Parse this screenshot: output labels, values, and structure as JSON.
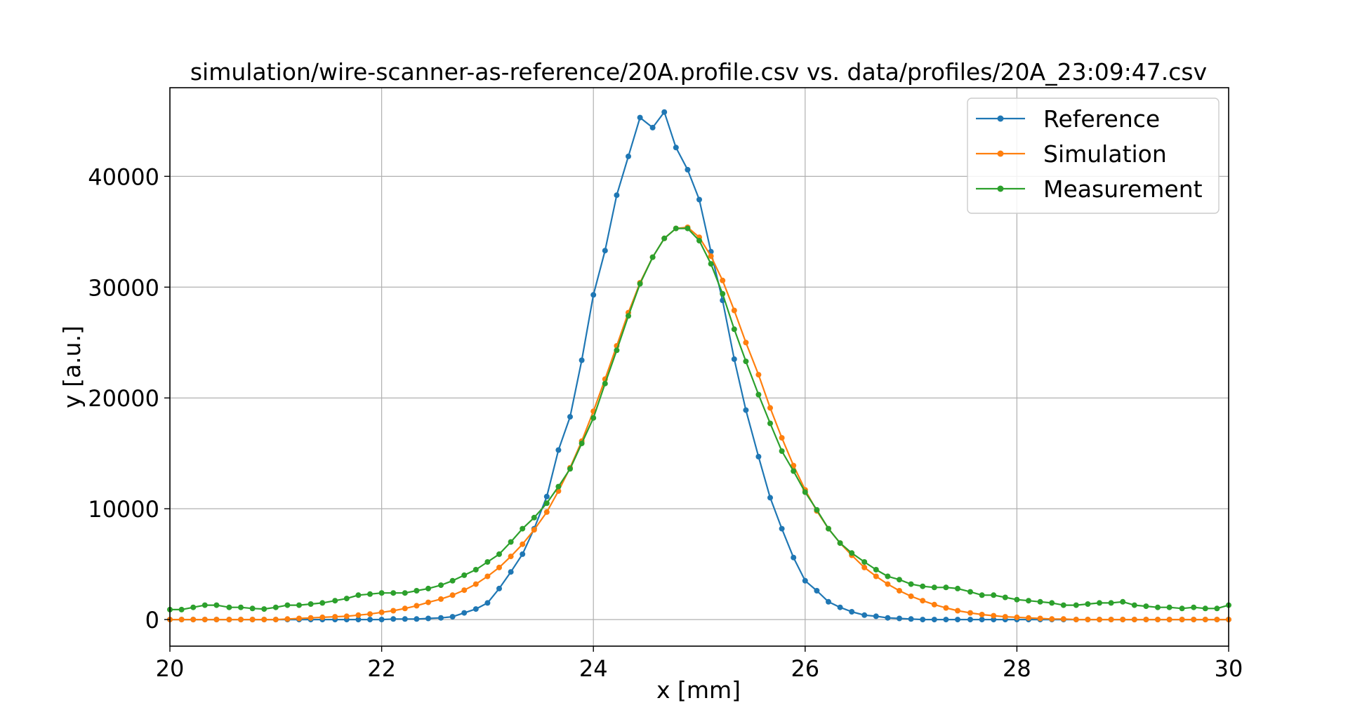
{
  "chart_data": {
    "type": "line",
    "title": "simulation/wire-scanner-as-reference/20A.profile.csv vs. data/profiles/20A_23:09:47.csv",
    "xlabel": "x [mm]",
    "ylabel": "y [a.u.]",
    "xlim": [
      20,
      30
    ],
    "ylim": [
      -2400,
      48000
    ],
    "xticks": [
      20,
      22,
      24,
      26,
      28,
      30
    ],
    "yticks": [
      0,
      10000,
      20000,
      30000,
      40000
    ],
    "grid": true,
    "legend_position": "top-right",
    "series": [
      {
        "name": "Reference",
        "color": "#1f77b4",
        "points": [
          [
            20.0,
            0
          ],
          [
            20.11,
            0
          ],
          [
            20.22,
            0
          ],
          [
            20.33,
            0
          ],
          [
            20.44,
            0
          ],
          [
            20.56,
            0
          ],
          [
            20.67,
            0
          ],
          [
            20.78,
            0
          ],
          [
            20.89,
            0
          ],
          [
            21.0,
            0
          ],
          [
            21.11,
            0
          ],
          [
            21.22,
            0
          ],
          [
            21.33,
            0
          ],
          [
            21.44,
            0
          ],
          [
            21.56,
            0
          ],
          [
            21.67,
            0
          ],
          [
            21.78,
            0
          ],
          [
            21.89,
            0
          ],
          [
            22.0,
            0
          ],
          [
            22.11,
            50
          ],
          [
            22.22,
            50
          ],
          [
            22.33,
            50
          ],
          [
            22.44,
            100
          ],
          [
            22.56,
            150
          ],
          [
            22.67,
            250
          ],
          [
            22.78,
            600
          ],
          [
            22.89,
            950
          ],
          [
            23.0,
            1500
          ],
          [
            23.11,
            2800
          ],
          [
            23.22,
            4300
          ],
          [
            23.33,
            5900
          ],
          [
            23.44,
            8200
          ],
          [
            23.56,
            11100
          ],
          [
            23.67,
            15300
          ],
          [
            23.78,
            18300
          ],
          [
            23.89,
            23400
          ],
          [
            24.0,
            29300
          ],
          [
            24.11,
            33300
          ],
          [
            24.22,
            38300
          ],
          [
            24.33,
            41800
          ],
          [
            24.44,
            45300
          ],
          [
            24.56,
            44400
          ],
          [
            24.67,
            45800
          ],
          [
            24.78,
            42600
          ],
          [
            24.89,
            40600
          ],
          [
            25.0,
            37900
          ],
          [
            25.11,
            33200
          ],
          [
            25.22,
            28800
          ],
          [
            25.33,
            23500
          ],
          [
            25.44,
            18900
          ],
          [
            25.56,
            14700
          ],
          [
            25.67,
            11000
          ],
          [
            25.78,
            8200
          ],
          [
            25.89,
            5600
          ],
          [
            26.0,
            3500
          ],
          [
            26.11,
            2600
          ],
          [
            26.22,
            1600
          ],
          [
            26.33,
            1100
          ],
          [
            26.44,
            700
          ],
          [
            26.56,
            400
          ],
          [
            26.67,
            300
          ],
          [
            26.78,
            150
          ],
          [
            26.89,
            100
          ],
          [
            27.0,
            50
          ],
          [
            27.11,
            0
          ],
          [
            27.22,
            0
          ],
          [
            27.33,
            0
          ],
          [
            27.44,
            0
          ],
          [
            27.56,
            0
          ],
          [
            27.67,
            0
          ],
          [
            27.78,
            0
          ],
          [
            27.89,
            0
          ],
          [
            28.0,
            0
          ],
          [
            28.11,
            0
          ],
          [
            28.22,
            0
          ],
          [
            28.33,
            0
          ],
          [
            28.44,
            0
          ],
          [
            28.56,
            0
          ],
          [
            28.67,
            0
          ],
          [
            28.78,
            0
          ],
          [
            28.89,
            0
          ],
          [
            29.0,
            0
          ],
          [
            29.11,
            0
          ],
          [
            29.22,
            0
          ],
          [
            29.33,
            0
          ],
          [
            29.44,
            0
          ],
          [
            29.56,
            0
          ],
          [
            29.67,
            0
          ],
          [
            29.78,
            0
          ],
          [
            29.89,
            0
          ],
          [
            30.0,
            0
          ]
        ]
      },
      {
        "name": "Simulation",
        "color": "#ff7f0e",
        "points": [
          [
            20.0,
            0
          ],
          [
            20.11,
            0
          ],
          [
            20.22,
            0
          ],
          [
            20.33,
            0
          ],
          [
            20.44,
            0
          ],
          [
            20.56,
            0
          ],
          [
            20.67,
            0
          ],
          [
            20.78,
            0
          ],
          [
            20.89,
            0
          ],
          [
            21.0,
            0
          ],
          [
            21.11,
            50
          ],
          [
            21.22,
            100
          ],
          [
            21.33,
            150
          ],
          [
            21.44,
            200
          ],
          [
            21.56,
            250
          ],
          [
            21.67,
            300
          ],
          [
            21.78,
            400
          ],
          [
            21.89,
            500
          ],
          [
            22.0,
            650
          ],
          [
            22.11,
            800
          ],
          [
            22.22,
            1000
          ],
          [
            22.33,
            1250
          ],
          [
            22.44,
            1550
          ],
          [
            22.56,
            1850
          ],
          [
            22.67,
            2200
          ],
          [
            22.78,
            2650
          ],
          [
            22.89,
            3200
          ],
          [
            23.0,
            3900
          ],
          [
            23.11,
            4700
          ],
          [
            23.22,
            5700
          ],
          [
            23.33,
            6800
          ],
          [
            23.44,
            8100
          ],
          [
            23.56,
            9700
          ],
          [
            23.67,
            11600
          ],
          [
            23.78,
            13700
          ],
          [
            23.89,
            16100
          ],
          [
            24.0,
            18800
          ],
          [
            24.11,
            21700
          ],
          [
            24.22,
            24700
          ],
          [
            24.33,
            27700
          ],
          [
            24.44,
            30400
          ],
          [
            24.56,
            32700
          ],
          [
            24.67,
            34400
          ],
          [
            24.78,
            35300
          ],
          [
            24.89,
            35400
          ],
          [
            25.0,
            34500
          ],
          [
            25.11,
            32800
          ],
          [
            25.22,
            30600
          ],
          [
            25.33,
            27900
          ],
          [
            25.44,
            25000
          ],
          [
            25.56,
            22100
          ],
          [
            25.67,
            19100
          ],
          [
            25.78,
            16400
          ],
          [
            25.89,
            13900
          ],
          [
            26.0,
            11700
          ],
          [
            26.11,
            9800
          ],
          [
            26.22,
            8200
          ],
          [
            26.33,
            6900
          ],
          [
            26.44,
            5800
          ],
          [
            26.56,
            4700
          ],
          [
            26.67,
            3900
          ],
          [
            26.78,
            3200
          ],
          [
            26.89,
            2600
          ],
          [
            27.0,
            2100
          ],
          [
            27.11,
            1700
          ],
          [
            27.22,
            1350
          ],
          [
            27.33,
            1050
          ],
          [
            27.44,
            800
          ],
          [
            27.56,
            600
          ],
          [
            27.67,
            450
          ],
          [
            27.78,
            350
          ],
          [
            27.89,
            250
          ],
          [
            28.0,
            200
          ],
          [
            28.11,
            150
          ],
          [
            28.22,
            100
          ],
          [
            28.33,
            50
          ],
          [
            28.44,
            50
          ],
          [
            28.56,
            0
          ],
          [
            28.67,
            0
          ],
          [
            28.78,
            0
          ],
          [
            28.89,
            0
          ],
          [
            29.0,
            0
          ],
          [
            29.11,
            0
          ],
          [
            29.22,
            0
          ],
          [
            29.33,
            0
          ],
          [
            29.44,
            0
          ],
          [
            29.56,
            0
          ],
          [
            29.67,
            0
          ],
          [
            29.78,
            0
          ],
          [
            29.89,
            0
          ],
          [
            30.0,
            0
          ]
        ]
      },
      {
        "name": "Measurement",
        "color": "#2ca02c",
        "points": [
          [
            20.0,
            900
          ],
          [
            20.11,
            900
          ],
          [
            20.22,
            1100
          ],
          [
            20.33,
            1300
          ],
          [
            20.44,
            1300
          ],
          [
            20.56,
            1100
          ],
          [
            20.67,
            1100
          ],
          [
            20.78,
            1000
          ],
          [
            20.89,
            950
          ],
          [
            21.0,
            1100
          ],
          [
            21.11,
            1300
          ],
          [
            21.22,
            1300
          ],
          [
            21.33,
            1400
          ],
          [
            21.44,
            1500
          ],
          [
            21.56,
            1700
          ],
          [
            21.67,
            1900
          ],
          [
            21.78,
            2200
          ],
          [
            21.89,
            2300
          ],
          [
            22.0,
            2400
          ],
          [
            22.11,
            2400
          ],
          [
            22.22,
            2400
          ],
          [
            22.33,
            2600
          ],
          [
            22.44,
            2800
          ],
          [
            22.56,
            3100
          ],
          [
            22.67,
            3500
          ],
          [
            22.78,
            4000
          ],
          [
            22.89,
            4500
          ],
          [
            23.0,
            5200
          ],
          [
            23.11,
            5900
          ],
          [
            23.22,
            7000
          ],
          [
            23.33,
            8200
          ],
          [
            23.44,
            9200
          ],
          [
            23.56,
            10500
          ],
          [
            23.67,
            12000
          ],
          [
            23.78,
            13600
          ],
          [
            23.89,
            15900
          ],
          [
            24.0,
            18200
          ],
          [
            24.11,
            21300
          ],
          [
            24.22,
            24300
          ],
          [
            24.33,
            27400
          ],
          [
            24.44,
            30300
          ],
          [
            24.56,
            32700
          ],
          [
            24.67,
            34400
          ],
          [
            24.78,
            35300
          ],
          [
            24.89,
            35300
          ],
          [
            25.0,
            34200
          ],
          [
            25.11,
            32100
          ],
          [
            25.22,
            29400
          ],
          [
            25.33,
            26200
          ],
          [
            25.44,
            23300
          ],
          [
            25.56,
            20300
          ],
          [
            25.67,
            17700
          ],
          [
            25.78,
            15200
          ],
          [
            25.89,
            13400
          ],
          [
            26.0,
            11500
          ],
          [
            26.11,
            9900
          ],
          [
            26.22,
            8200
          ],
          [
            26.33,
            6900
          ],
          [
            26.44,
            6000
          ],
          [
            26.56,
            5200
          ],
          [
            26.67,
            4500
          ],
          [
            26.78,
            3900
          ],
          [
            26.89,
            3600
          ],
          [
            27.0,
            3200
          ],
          [
            27.11,
            3000
          ],
          [
            27.22,
            2900
          ],
          [
            27.33,
            2900
          ],
          [
            27.44,
            2800
          ],
          [
            27.56,
            2500
          ],
          [
            27.67,
            2200
          ],
          [
            27.78,
            2200
          ],
          [
            27.89,
            2000
          ],
          [
            28.0,
            1800
          ],
          [
            28.11,
            1700
          ],
          [
            28.22,
            1600
          ],
          [
            28.33,
            1500
          ],
          [
            28.44,
            1300
          ],
          [
            28.56,
            1300
          ],
          [
            28.67,
            1400
          ],
          [
            28.78,
            1500
          ],
          [
            28.89,
            1500
          ],
          [
            29.0,
            1600
          ],
          [
            29.11,
            1300
          ],
          [
            29.22,
            1200
          ],
          [
            29.33,
            1100
          ],
          [
            29.44,
            1100
          ],
          [
            29.56,
            1000
          ],
          [
            29.67,
            1100
          ],
          [
            29.78,
            1000
          ],
          [
            29.89,
            1000
          ],
          [
            30.0,
            1300
          ]
        ]
      }
    ]
  }
}
